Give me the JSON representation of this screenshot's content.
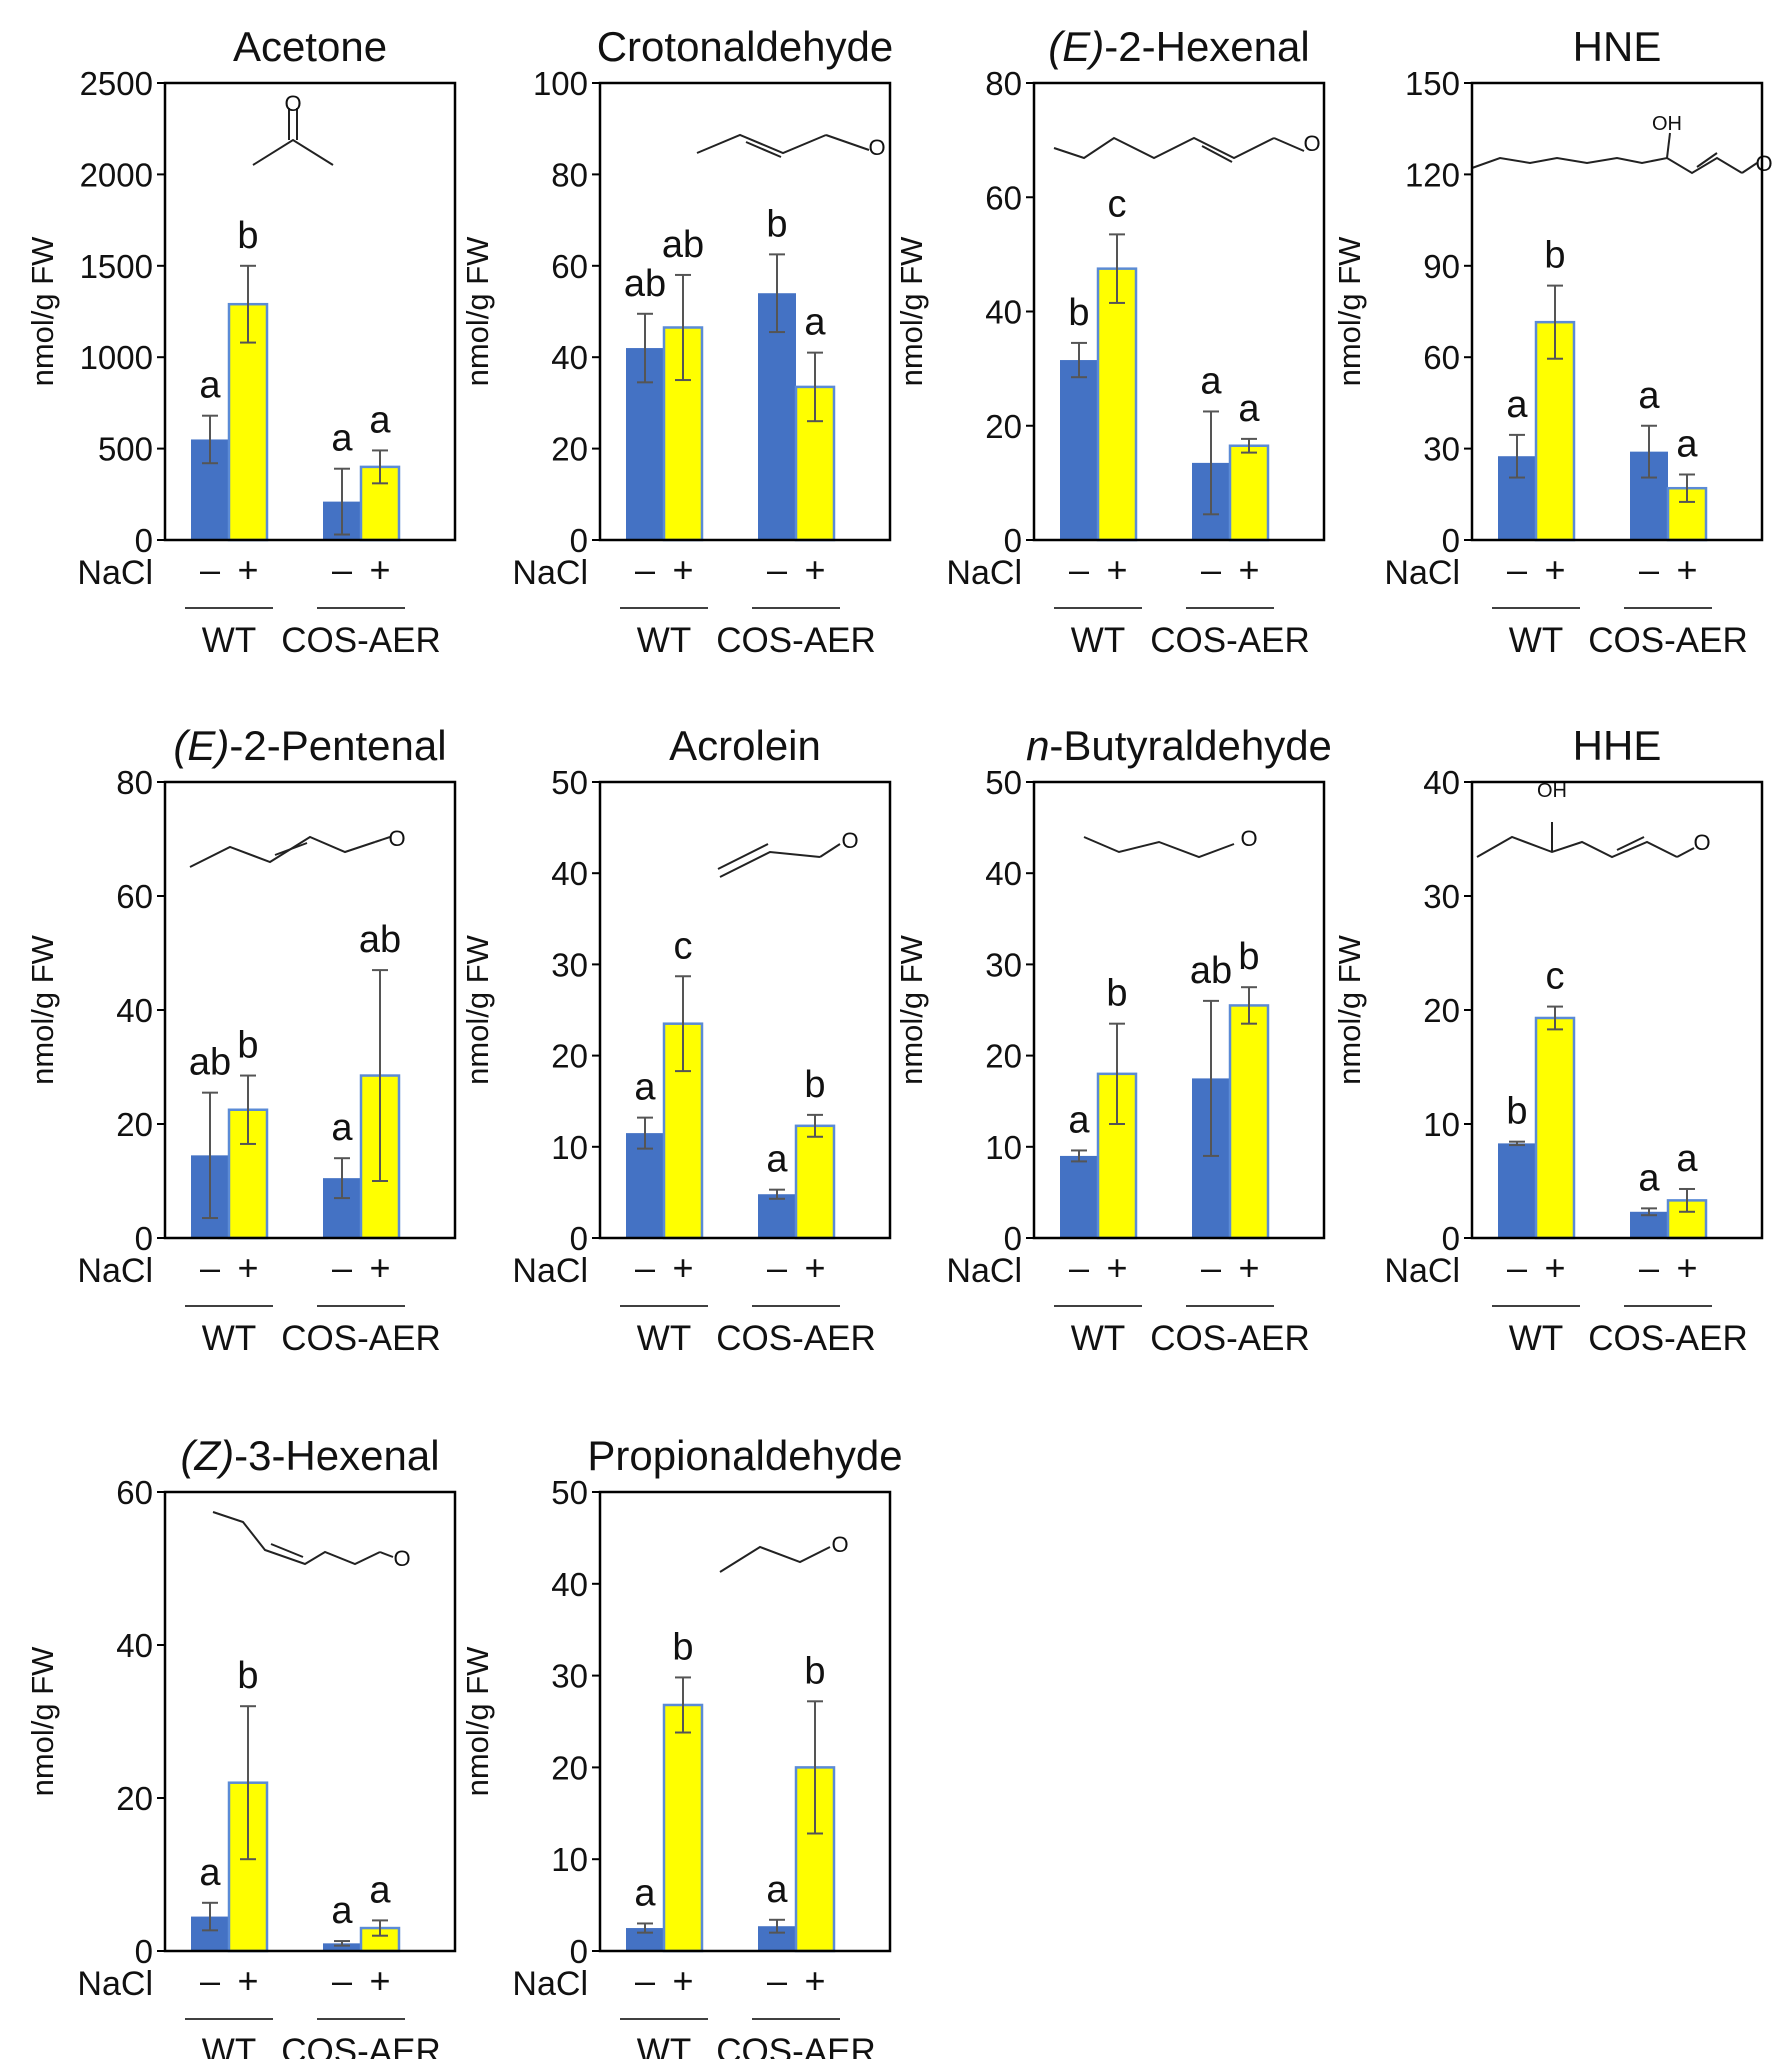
{
  "figure": {
    "ylabel": "nmol/g FW",
    "nacl_label": "NaCl",
    "minus": "–",
    "plus": "+",
    "groups": [
      "WT",
      "COS-AER"
    ],
    "colors": {
      "minus": "#4472C4",
      "plus": "#FFFF00",
      "plus_edge": "#5B8BD6",
      "error": "#555555",
      "axis": "#000000"
    }
  },
  "chart_data": [
    {
      "type": "bar",
      "title": "Acetone",
      "title_italic": "",
      "molecule": "acetone",
      "ylabel": "nmol/g FW",
      "ylim": [
        0,
        2500
      ],
      "yticks": [
        0,
        500,
        1000,
        1500,
        2000,
        2500
      ],
      "categories": [
        "WT",
        "COS-AER"
      ],
      "series": [
        {
          "name": "–",
          "values": [
            550,
            210
          ],
          "errors": [
            130,
            180
          ],
          "letters": [
            "a",
            "a"
          ]
        },
        {
          "name": "+",
          "values": [
            1290,
            400
          ],
          "errors": [
            210,
            90
          ],
          "letters": [
            "b",
            "a"
          ]
        }
      ]
    },
    {
      "type": "bar",
      "title": "Crotonaldehyde",
      "title_italic": "",
      "molecule": "crotonaldehyde",
      "ylabel": "nmol/g FW",
      "ylim": [
        0,
        100
      ],
      "yticks": [
        0,
        20,
        40,
        60,
        80,
        100
      ],
      "categories": [
        "WT",
        "COS-AER"
      ],
      "series": [
        {
          "name": "–",
          "values": [
            42,
            54
          ],
          "errors": [
            7.5,
            8.5
          ],
          "letters": [
            "ab",
            "b"
          ]
        },
        {
          "name": "+",
          "values": [
            46.5,
            33.5
          ],
          "errors": [
            11.5,
            7.5
          ],
          "letters": [
            "ab",
            "a"
          ]
        }
      ]
    },
    {
      "type": "bar",
      "title": "-2-Hexenal",
      "title_italic": "(E)",
      "molecule": "e2hexenal",
      "ylabel": "nmol/g FW",
      "ylim": [
        0,
        80
      ],
      "yticks": [
        0,
        20,
        40,
        60,
        80
      ],
      "categories": [
        "WT",
        "COS-AER"
      ],
      "series": [
        {
          "name": "–",
          "values": [
            31.5,
            13.5
          ],
          "errors": [
            3,
            9
          ],
          "letters": [
            "b",
            "a"
          ]
        },
        {
          "name": "+",
          "values": [
            47.5,
            16.5
          ],
          "errors": [
            6,
            1.2
          ],
          "letters": [
            "c",
            "a"
          ]
        }
      ]
    },
    {
      "type": "bar",
      "title": "HNE",
      "title_italic": "",
      "molecule": "hne",
      "ylabel": "nmol/g FW",
      "ylim": [
        0,
        150
      ],
      "yticks": [
        0,
        30,
        60,
        90,
        120,
        150
      ],
      "categories": [
        "WT",
        "COS-AER"
      ],
      "series": [
        {
          "name": "–",
          "values": [
            27.5,
            29
          ],
          "errors": [
            7,
            8.5
          ],
          "letters": [
            "a",
            "a"
          ]
        },
        {
          "name": "+",
          "values": [
            71.5,
            17
          ],
          "errors": [
            12,
            4.5
          ],
          "letters": [
            "b",
            "a"
          ]
        }
      ]
    },
    {
      "type": "bar",
      "title": "-2-Pentenal",
      "title_italic": "(E)",
      "molecule": "e2pentenal",
      "ylabel": "nmol/g FW",
      "ylim": [
        0,
        80
      ],
      "yticks": [
        0,
        20,
        40,
        60,
        80
      ],
      "categories": [
        "WT",
        "COS-AER"
      ],
      "series": [
        {
          "name": "–",
          "values": [
            14.5,
            10.5
          ],
          "errors": [
            11,
            3.5
          ],
          "letters": [
            "ab",
            "a"
          ]
        },
        {
          "name": "+",
          "values": [
            22.5,
            28.5
          ],
          "errors": [
            6,
            18.5
          ],
          "letters": [
            "b",
            "ab"
          ]
        }
      ]
    },
    {
      "type": "bar",
      "title": "Acrolein",
      "title_italic": "",
      "molecule": "acrolein",
      "ylabel": "nmol/g FW",
      "ylim": [
        0,
        50
      ],
      "yticks": [
        0,
        10,
        20,
        30,
        40,
        50
      ],
      "categories": [
        "WT",
        "COS-AER"
      ],
      "series": [
        {
          "name": "–",
          "values": [
            11.5,
            4.8
          ],
          "errors": [
            1.7,
            0.5
          ],
          "letters": [
            "a",
            "a"
          ]
        },
        {
          "name": "+",
          "values": [
            23.5,
            12.3
          ],
          "errors": [
            5.2,
            1.2
          ],
          "letters": [
            "c",
            "b"
          ]
        }
      ]
    },
    {
      "type": "bar",
      "title": "-Butyraldehyde",
      "title_italic": "n",
      "molecule": "butyraldehyde",
      "ylabel": "nmol/g FW",
      "ylim": [
        0,
        50
      ],
      "yticks": [
        0,
        10,
        20,
        30,
        40,
        50
      ],
      "categories": [
        "WT",
        "COS-AER"
      ],
      "series": [
        {
          "name": "–",
          "values": [
            9,
            17.5
          ],
          "errors": [
            0.6,
            8.5
          ],
          "letters": [
            "a",
            "ab"
          ]
        },
        {
          "name": "+",
          "values": [
            18,
            25.5
          ],
          "errors": [
            5.5,
            2
          ],
          "letters": [
            "b",
            "b"
          ]
        }
      ]
    },
    {
      "type": "bar",
      "title": "HHE",
      "title_italic": "",
      "molecule": "hhe",
      "ylabel": "nmol/g FW",
      "ylim": [
        0,
        40
      ],
      "yticks": [
        0,
        10,
        20,
        30,
        40
      ],
      "categories": [
        "WT",
        "COS-AER"
      ],
      "series": [
        {
          "name": "–",
          "values": [
            8.3,
            2.3
          ],
          "errors": [
            0.15,
            0.3
          ],
          "letters": [
            "b",
            "a"
          ]
        },
        {
          "name": "+",
          "values": [
            19.3,
            3.3
          ],
          "errors": [
            1,
            1
          ],
          "letters": [
            "c",
            "a"
          ]
        }
      ]
    },
    {
      "type": "bar",
      "title": "-3-Hexenal",
      "title_italic": "(Z)",
      "molecule": "z3hexenal",
      "ylabel": "nmol/g FW",
      "ylim": [
        0,
        60
      ],
      "yticks": [
        0,
        20,
        40,
        60
      ],
      "categories": [
        "WT",
        "COS-AER"
      ],
      "series": [
        {
          "name": "–",
          "values": [
            4.5,
            1
          ],
          "errors": [
            1.8,
            0.3
          ],
          "letters": [
            "a",
            "a"
          ]
        },
        {
          "name": "+",
          "values": [
            22,
            3
          ],
          "errors": [
            10,
            1
          ],
          "letters": [
            "b",
            "a"
          ]
        }
      ]
    },
    {
      "type": "bar",
      "title": "Propionaldehyde",
      "title_italic": "",
      "molecule": "propionaldehyde",
      "ylabel": "nmol/g FW",
      "ylim": [
        0,
        50
      ],
      "yticks": [
        0,
        10,
        20,
        30,
        40,
        50
      ],
      "categories": [
        "WT",
        "COS-AER"
      ],
      "series": [
        {
          "name": "–",
          "values": [
            2.5,
            2.7
          ],
          "errors": [
            0.5,
            0.7
          ],
          "letters": [
            "a",
            "a"
          ]
        },
        {
          "name": "+",
          "values": [
            26.8,
            20
          ],
          "errors": [
            3,
            7.2
          ],
          "letters": [
            "b",
            "b"
          ]
        }
      ]
    }
  ]
}
